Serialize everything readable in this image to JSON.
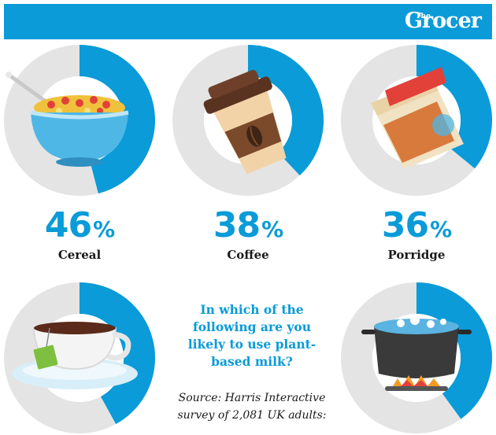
{
  "brand": {
    "small": "The",
    "name": "Grocer"
  },
  "question": "In which of the following are you likely to use plant-based milk?",
  "source": "Source: Harris Interactive survey of 2,081 UK adults:",
  "colors": {
    "accent": "#0a9bd8",
    "ring": "#e4e4e4",
    "text": "#1a1a1a"
  },
  "chart_data": {
    "type": "pie",
    "title": "In which of the following are you likely to use plant-based milk?",
    "unit": "%",
    "items": [
      {
        "label": "Cereal",
        "value": 46,
        "icon": "cereal-bowl-icon"
      },
      {
        "label": "Coffee",
        "value": 38,
        "icon": "coffee-cup-icon"
      },
      {
        "label": "Porridge",
        "value": 36,
        "icon": "oat-flakes-icon"
      },
      {
        "label": "",
        "value": 42,
        "icon": "tea-cup-icon"
      },
      {
        "label": "",
        "value": 40,
        "icon": "boiling-pot-icon"
      }
    ]
  }
}
